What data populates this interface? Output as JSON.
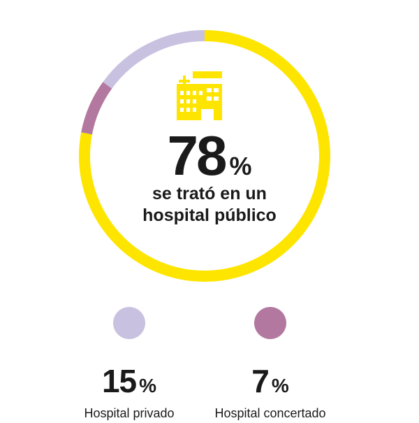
{
  "chart_data": {
    "type": "pie",
    "series": [
      {
        "name": "se trató en un hospital público",
        "value": 78,
        "color": "#fee500"
      },
      {
        "name": "Hospital privado",
        "value": 15,
        "color": "#c9c1e0"
      },
      {
        "name": "Hospital concertado",
        "value": 7,
        "color": "#b3789f"
      }
    ]
  },
  "center": {
    "value": "78",
    "unit": "%",
    "caption_line1": "se trató en un",
    "caption_line2": "hospital público",
    "icon": "hospital-icon"
  },
  "legend": [
    {
      "value": "15",
      "unit": "%",
      "label": "Hospital privado",
      "color": "#c9c1e0"
    },
    {
      "value": "7",
      "unit": "%",
      "label": "Hospital concertado",
      "color": "#b3789f"
    }
  ]
}
